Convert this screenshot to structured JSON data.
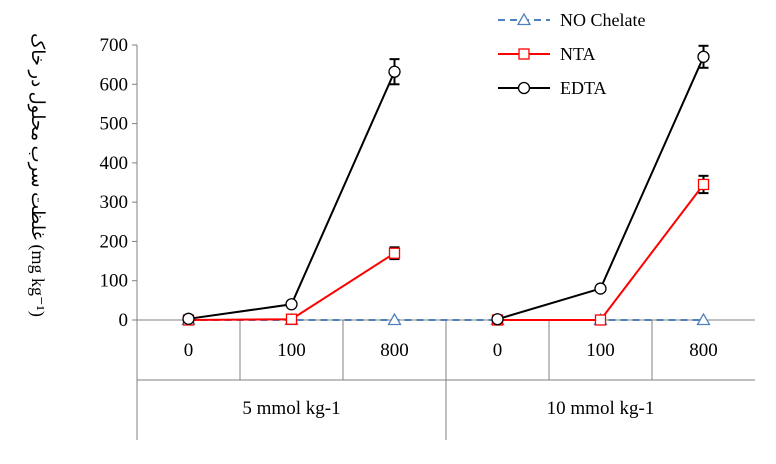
{
  "chart_data": {
    "type": "line",
    "title": "",
    "ylabel": "(mg kg⁻¹) غلظت سرب محلول در خاک",
    "ylim": [
      0,
      700
    ],
    "yticks": [
      0,
      100,
      200,
      300,
      400,
      500,
      600,
      700
    ],
    "categories": [
      "0",
      "100",
      "800",
      "0",
      "100",
      "800"
    ],
    "groups": [
      {
        "label": "5 mmol kg-1",
        "span": 3
      },
      {
        "label": "10 mmol kg-1",
        "span": 3
      }
    ],
    "legend_position": "top-right",
    "grid": false,
    "series": [
      {
        "name": "NO Chelate",
        "color": "#4f81bd",
        "marker": "triangle",
        "dash": "dashed",
        "segments": [
          [
            0,
            1,
            2,
            3,
            4,
            5
          ]
        ],
        "values": [
          0,
          0,
          0,
          0,
          0,
          0
        ],
        "errors": [
          0,
          0,
          0,
          0,
          0,
          0
        ]
      },
      {
        "name": "NTA",
        "color": "#ff0000",
        "marker": "square",
        "dash": "solid",
        "segments": [
          [
            0,
            1,
            2
          ],
          [
            3,
            4,
            5
          ]
        ],
        "values": [
          0,
          2,
          170,
          0,
          0,
          345
        ],
        "errors": [
          0,
          0,
          15,
          0,
          0,
          22
        ]
      },
      {
        "name": "EDTA",
        "color": "#000000",
        "marker": "circle",
        "dash": "solid",
        "segments": [
          [
            0,
            1,
            2
          ],
          [
            3,
            4,
            5
          ]
        ],
        "values": [
          3,
          40,
          632,
          2,
          80,
          670
        ],
        "errors": [
          0,
          0,
          32,
          0,
          0,
          28
        ]
      }
    ]
  }
}
